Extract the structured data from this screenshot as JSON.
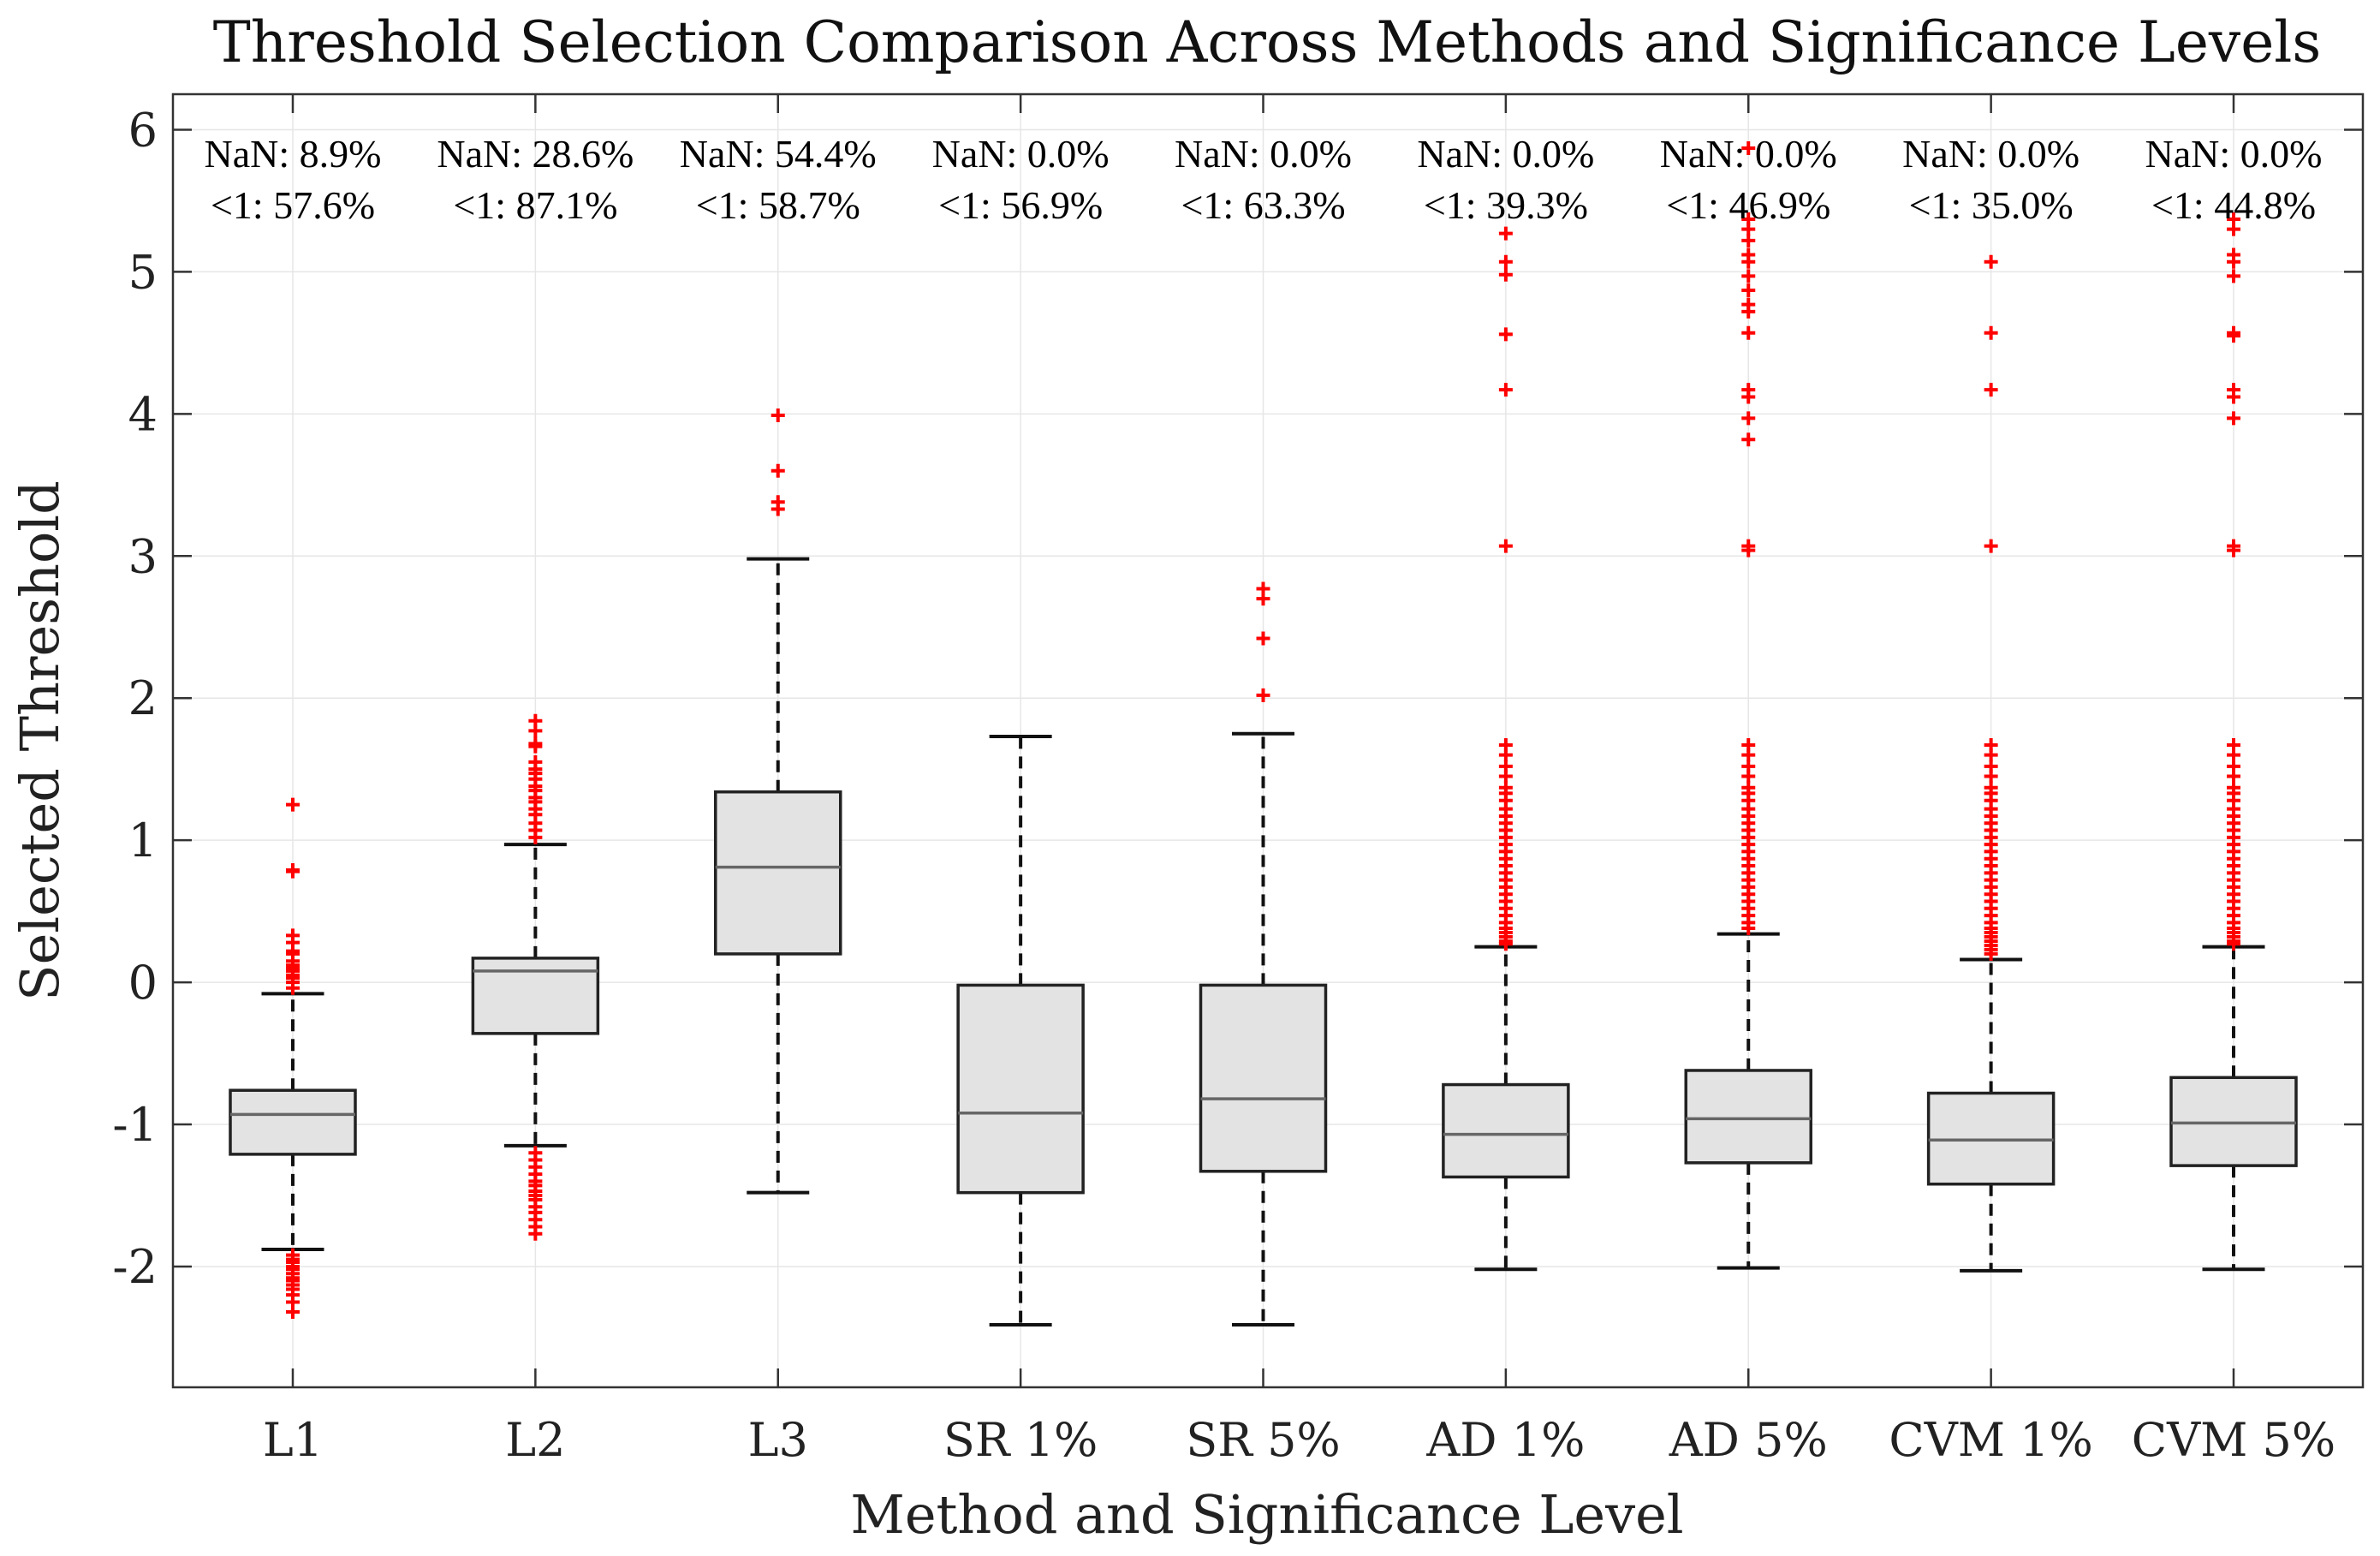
{
  "colors": {
    "box_fill": "#e3e3e3",
    "box_edge": "#222222",
    "median": "#666666",
    "whisker": "#111111",
    "outlier": "#ff0000",
    "grid": "#e6e6e6",
    "axes": "#333333"
  },
  "chart_data": {
    "type": "boxplot",
    "title": "Threshold Selection Comparison Across Methods and Significance Levels",
    "xlabel": "Method and Significance Level",
    "ylabel": "Selected Threshold",
    "ylim": [
      -2.85,
      6.25
    ],
    "yticks": [
      6,
      5,
      4,
      3,
      2,
      1,
      0,
      -1,
      -2
    ],
    "ytick_labels": [
      "6",
      "5",
      "4",
      "3",
      "2",
      "1",
      "0",
      "-1",
      "-2"
    ],
    "grid": true,
    "categories": [
      "L1",
      "L2",
      "L3",
      "SR 1%",
      "SR 5%",
      "AD 1%",
      "AD 5%",
      "CVM 1%",
      "CVM 5%"
    ],
    "annotations": [
      {
        "nan": "NaN: 8.9%",
        "lt1": "<1: 57.6%"
      },
      {
        "nan": "NaN: 28.6%",
        "lt1": "<1: 87.1%"
      },
      {
        "nan": "NaN: 54.4%",
        "lt1": "<1: 58.7%"
      },
      {
        "nan": "NaN: 0.0%",
        "lt1": "<1: 56.9%"
      },
      {
        "nan": "NaN: 0.0%",
        "lt1": "<1: 63.3%"
      },
      {
        "nan": "NaN: 0.0%",
        "lt1": "<1: 39.3%"
      },
      {
        "nan": "NaN: 0.0%",
        "lt1": "<1: 46.9%"
      },
      {
        "nan": "NaN: 0.0%",
        "lt1": "<1: 35.0%"
      },
      {
        "nan": "NaN: 0.0%",
        "lt1": "<1: 44.8%"
      }
    ],
    "boxes": [
      {
        "whisker_low": -1.88,
        "q1": -1.21,
        "median": -0.93,
        "q3": -0.76,
        "whisker_high": -0.08,
        "outliers": [
          1.25,
          0.79,
          0.78,
          0.33,
          0.28,
          0.22,
          0.2,
          0.15,
          0.12,
          0.1,
          0.08,
          0.05,
          0.03,
          0.0,
          -0.04,
          -1.92,
          -1.95,
          -1.97,
          -2.0,
          -2.02,
          -2.05,
          -2.08,
          -2.1,
          -2.13,
          -2.16,
          -2.2,
          -2.25,
          -2.32
        ]
      },
      {
        "whisker_low": -1.15,
        "q1": -0.36,
        "median": 0.08,
        "q3": 0.17,
        "whisker_high": 0.97,
        "outliers": [
          1.84,
          1.77,
          1.68,
          1.66,
          1.55,
          1.5,
          1.47,
          1.43,
          1.38,
          1.35,
          1.3,
          1.27,
          1.22,
          1.18,
          1.12,
          1.07,
          1.02,
          -1.2,
          -1.25,
          -1.3,
          -1.35,
          -1.4,
          -1.43,
          -1.47,
          -1.5,
          -1.53,
          -1.58,
          -1.62,
          -1.67,
          -1.72,
          -1.77
        ]
      },
      {
        "whisker_low": -1.48,
        "q1": 0.2,
        "median": 0.81,
        "q3": 1.34,
        "whisker_high": 2.98,
        "outliers": [
          3.99,
          3.6,
          3.38,
          3.33
        ]
      },
      {
        "whisker_low": -2.41,
        "q1": -1.48,
        "median": -0.92,
        "q3": -0.02,
        "whisker_high": 1.73,
        "outliers": []
      },
      {
        "whisker_low": -2.41,
        "q1": -1.33,
        "median": -0.82,
        "q3": -0.02,
        "whisker_high": 1.75,
        "outliers": [
          2.77,
          2.7,
          2.42,
          2.02
        ]
      },
      {
        "whisker_low": -2.02,
        "q1": -1.37,
        "median": -1.07,
        "q3": -0.72,
        "whisker_high": 0.25,
        "outliers": [
          5.27,
          5.07,
          4.98,
          4.56,
          4.17,
          3.07,
          1.67,
          1.6,
          1.52,
          1.45,
          1.37,
          1.33,
          1.28,
          1.22,
          1.17,
          1.12,
          1.07,
          1.02,
          0.97,
          0.92,
          0.87,
          0.82,
          0.77,
          0.72,
          0.67,
          0.62,
          0.57,
          0.52,
          0.47,
          0.42,
          0.38,
          0.35,
          0.32,
          0.29,
          0.27
        ]
      },
      {
        "whisker_low": -2.01,
        "q1": -1.27,
        "median": -0.96,
        "q3": -0.62,
        "whisker_high": 0.34,
        "outliers": [
          5.87,
          5.37,
          5.3,
          5.22,
          5.12,
          5.07,
          4.97,
          4.87,
          4.77,
          4.72,
          4.57,
          4.17,
          4.12,
          3.97,
          3.82,
          3.07,
          3.04,
          1.67,
          1.6,
          1.52,
          1.45,
          1.37,
          1.33,
          1.28,
          1.22,
          1.17,
          1.12,
          1.07,
          1.02,
          0.97,
          0.92,
          0.87,
          0.82,
          0.77,
          0.72,
          0.67,
          0.62,
          0.57,
          0.52,
          0.47,
          0.42,
          0.38
        ]
      },
      {
        "whisker_low": -2.03,
        "q1": -1.42,
        "median": -1.11,
        "q3": -0.78,
        "whisker_high": 0.16,
        "outliers": [
          5.07,
          4.57,
          4.17,
          3.07,
          1.67,
          1.6,
          1.52,
          1.45,
          1.37,
          1.33,
          1.28,
          1.22,
          1.17,
          1.12,
          1.07,
          1.02,
          0.97,
          0.92,
          0.87,
          0.82,
          0.77,
          0.72,
          0.67,
          0.62,
          0.57,
          0.52,
          0.47,
          0.42,
          0.38,
          0.35,
          0.32,
          0.29,
          0.26,
          0.23,
          0.2
        ]
      },
      {
        "whisker_low": -2.02,
        "q1": -1.29,
        "median": -0.99,
        "q3": -0.67,
        "whisker_high": 0.25,
        "outliers": [
          5.37,
          5.3,
          5.12,
          5.07,
          4.97,
          4.57,
          4.55,
          4.17,
          4.12,
          3.97,
          3.07,
          3.04,
          1.67,
          1.6,
          1.52,
          1.45,
          1.37,
          1.33,
          1.28,
          1.22,
          1.17,
          1.12,
          1.07,
          1.02,
          0.97,
          0.92,
          0.87,
          0.82,
          0.77,
          0.72,
          0.67,
          0.62,
          0.57,
          0.52,
          0.47,
          0.42,
          0.38,
          0.35,
          0.32,
          0.29,
          0.27
        ]
      }
    ]
  }
}
